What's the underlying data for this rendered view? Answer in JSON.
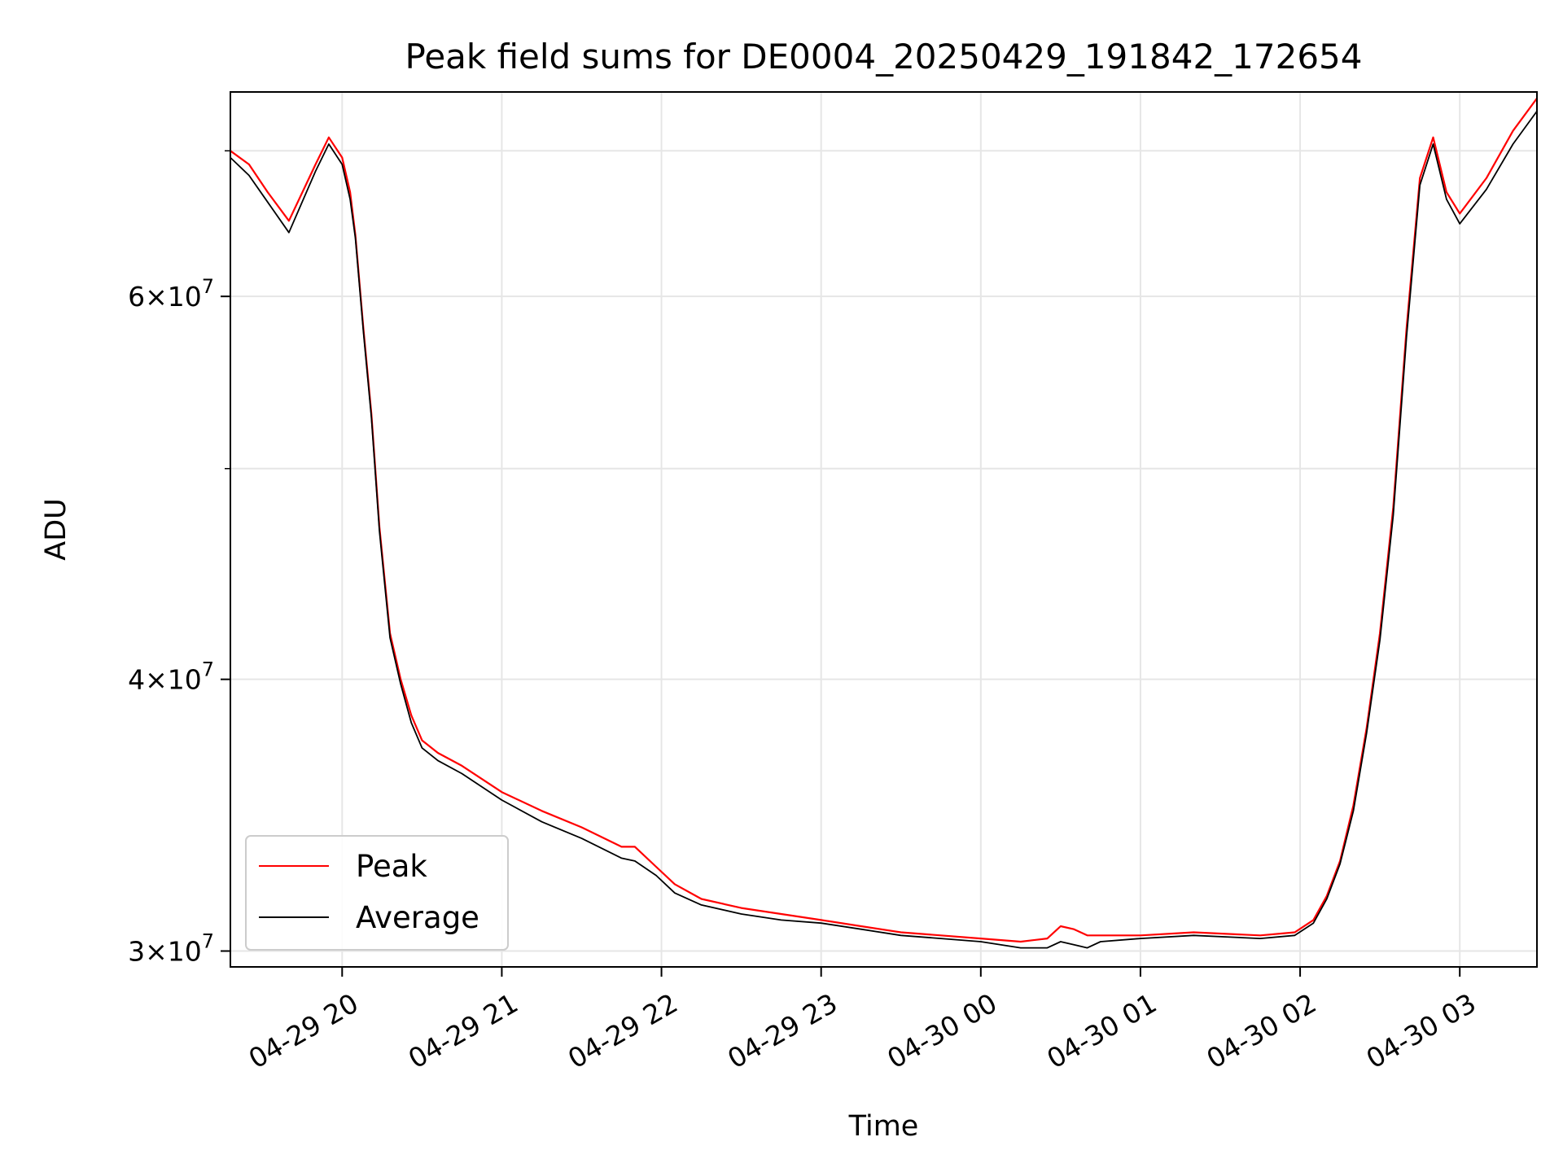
{
  "chart_data": {
    "type": "line",
    "title": "Peak field sums for DE0004_20250429_191842_172654",
    "xlabel": "Time",
    "ylabel": "ADU",
    "xlim": [
      "2025-04-29 19:18",
      "2025-04-30 03:29"
    ],
    "ylim": [
      29500000,
      74500000
    ],
    "yscale": "log",
    "grid": true,
    "legend_position": "lower-left",
    "x_ticks": [
      "04-29 20",
      "04-29 21",
      "04-29 22",
      "04-29 23",
      "04-30 00",
      "04-30 01",
      "04-30 02",
      "04-30 03"
    ],
    "y_ticks": [
      {
        "value": 30000000,
        "base": "3",
        "exp": "7"
      },
      {
        "value": 40000000,
        "base": "4",
        "exp": "7"
      },
      {
        "value": 60000000,
        "base": "6",
        "exp": "7"
      }
    ],
    "series": [
      {
        "name": "Peak",
        "color": "#ff0000",
        "x": [
          "2025-04-29 19:18",
          "2025-04-29 19:25",
          "2025-04-29 19:32",
          "2025-04-29 19:40",
          "2025-04-29 19:50",
          "2025-04-29 19:55",
          "2025-04-29 20:00",
          "2025-04-29 20:03",
          "2025-04-29 20:05",
          "2025-04-29 20:08",
          "2025-04-29 20:11",
          "2025-04-29 20:14",
          "2025-04-29 20:18",
          "2025-04-29 20:22",
          "2025-04-29 20:26",
          "2025-04-29 20:30",
          "2025-04-29 20:36",
          "2025-04-29 20:45",
          "2025-04-29 21:00",
          "2025-04-29 21:15",
          "2025-04-29 21:30",
          "2025-04-29 21:45",
          "2025-04-29 21:50",
          "2025-04-29 21:58",
          "2025-04-29 22:05",
          "2025-04-29 22:15",
          "2025-04-29 22:30",
          "2025-04-29 22:45",
          "2025-04-29 23:00",
          "2025-04-29 23:15",
          "2025-04-29 23:30",
          "2025-04-29 23:45",
          "2025-04-30 00:00",
          "2025-04-30 00:15",
          "2025-04-30 00:25",
          "2025-04-30 00:30",
          "2025-04-30 00:35",
          "2025-04-30 00:40",
          "2025-04-30 00:45",
          "2025-04-30 01:00",
          "2025-04-30 01:20",
          "2025-04-30 01:45",
          "2025-04-30 01:58",
          "2025-04-30 02:05",
          "2025-04-30 02:10",
          "2025-04-30 02:15",
          "2025-04-30 02:20",
          "2025-04-30 02:25",
          "2025-04-30 02:30",
          "2025-04-30 02:35",
          "2025-04-30 02:40",
          "2025-04-30 02:45",
          "2025-04-30 02:50",
          "2025-04-30 02:55",
          "2025-04-30 03:00",
          "2025-04-30 03:10",
          "2025-04-30 03:20",
          "2025-04-30 03:29"
        ],
        "values": [
          70000000,
          69000000,
          67000000,
          65000000,
          69000000,
          71000000,
          69500000,
          67000000,
          64000000,
          58000000,
          53000000,
          47000000,
          42000000,
          40000000,
          38500000,
          37500000,
          37000000,
          36500000,
          35500000,
          34800000,
          34200000,
          33500000,
          33500000,
          32800000,
          32200000,
          31700000,
          31400000,
          31200000,
          31000000,
          30800000,
          30600000,
          30500000,
          30400000,
          30300000,
          30400000,
          30800000,
          30700000,
          30500000,
          30500000,
          30500000,
          30600000,
          30500000,
          30600000,
          31000000,
          31800000,
          33000000,
          35000000,
          38000000,
          42000000,
          48000000,
          58000000,
          68000000,
          71000000,
          67000000,
          65500000,
          68000000,
          71500000,
          74000000
        ]
      },
      {
        "name": "Average",
        "color": "#000000",
        "x": [
          "2025-04-29 19:18",
          "2025-04-29 19:25",
          "2025-04-29 19:32",
          "2025-04-29 19:40",
          "2025-04-29 19:50",
          "2025-04-29 19:55",
          "2025-04-29 20:00",
          "2025-04-29 20:03",
          "2025-04-29 20:05",
          "2025-04-29 20:08",
          "2025-04-29 20:11",
          "2025-04-29 20:14",
          "2025-04-29 20:18",
          "2025-04-29 20:22",
          "2025-04-29 20:26",
          "2025-04-29 20:30",
          "2025-04-29 20:36",
          "2025-04-29 20:45",
          "2025-04-29 21:00",
          "2025-04-29 21:15",
          "2025-04-29 21:30",
          "2025-04-29 21:45",
          "2025-04-29 21:50",
          "2025-04-29 21:58",
          "2025-04-29 22:05",
          "2025-04-29 22:15",
          "2025-04-29 22:30",
          "2025-04-29 22:45",
          "2025-04-29 23:00",
          "2025-04-29 23:15",
          "2025-04-29 23:30",
          "2025-04-29 23:45",
          "2025-04-30 00:00",
          "2025-04-30 00:15",
          "2025-04-30 00:25",
          "2025-04-30 00:30",
          "2025-04-30 00:35",
          "2025-04-30 00:40",
          "2025-04-30 00:45",
          "2025-04-30 01:00",
          "2025-04-30 01:20",
          "2025-04-30 01:45",
          "2025-04-30 01:58",
          "2025-04-30 02:05",
          "2025-04-30 02:10",
          "2025-04-30 02:15",
          "2025-04-30 02:20",
          "2025-04-30 02:25",
          "2025-04-30 02:30",
          "2025-04-30 02:35",
          "2025-04-30 02:40",
          "2025-04-30 02:45",
          "2025-04-30 02:50",
          "2025-04-30 02:55",
          "2025-04-30 03:00",
          "2025-04-30 03:10",
          "2025-04-30 03:20",
          "2025-04-30 03:29"
        ],
        "values": [
          69500000,
          68200000,
          66300000,
          64200000,
          68500000,
          70500000,
          69000000,
          66500000,
          63800000,
          57800000,
          52800000,
          46800000,
          41800000,
          39800000,
          38200000,
          37200000,
          36700000,
          36200000,
          35200000,
          34400000,
          33800000,
          33100000,
          33000000,
          32500000,
          31900000,
          31500000,
          31200000,
          31000000,
          30900000,
          30700000,
          30500000,
          30400000,
          30300000,
          30100000,
          30100000,
          30300000,
          30200000,
          30100000,
          30300000,
          30400000,
          30500000,
          30400000,
          30500000,
          30900000,
          31700000,
          32900000,
          34800000,
          37800000,
          41700000,
          47600000,
          57500000,
          67500000,
          70500000,
          66500000,
          64800000,
          67200000,
          70500000,
          73000000
        ]
      }
    ]
  }
}
